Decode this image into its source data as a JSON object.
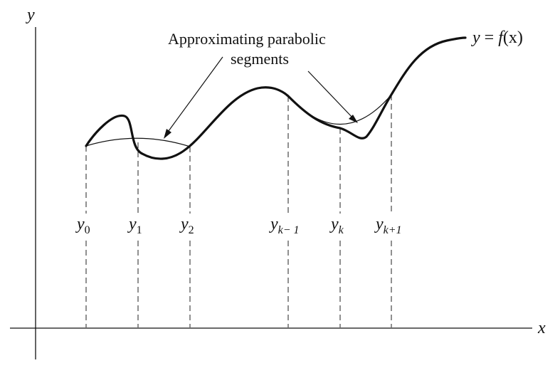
{
  "axes": {
    "x_label": "x",
    "y_label": "y"
  },
  "curve_label": {
    "lhs": "y",
    "equals": " = ",
    "func": "f",
    "arg": "(x)"
  },
  "annotation": {
    "line1": "Approximating parabolic",
    "line2": "segments"
  },
  "points": [
    {
      "base": "y",
      "sub": "0"
    },
    {
      "base": "y",
      "sub": "1"
    },
    {
      "base": "y",
      "sub": "2"
    },
    {
      "base": "y",
      "sub": "k− 1"
    },
    {
      "base": "y",
      "sub": "k"
    },
    {
      "base": "y",
      "sub": "k+1"
    }
  ],
  "colors": {
    "ink": "#111111",
    "paper": "#ffffff"
  }
}
